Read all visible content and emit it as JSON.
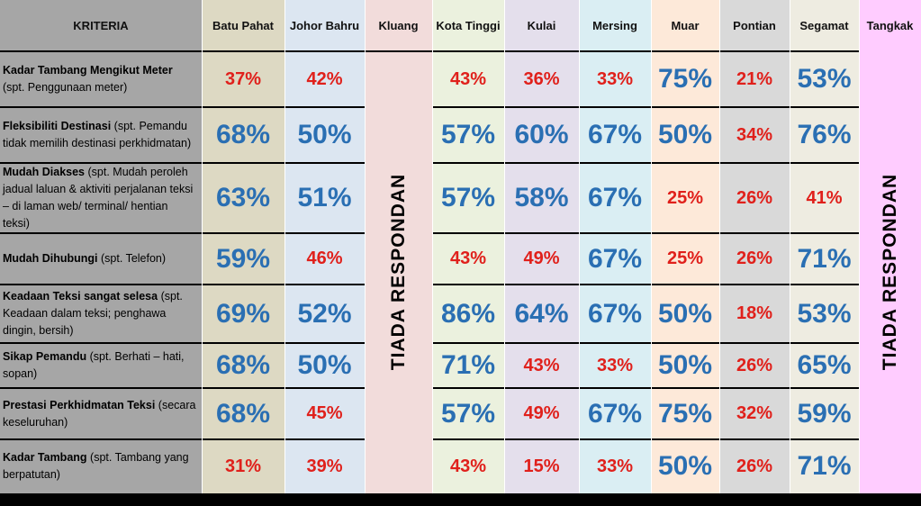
{
  "header": {
    "criteria_label": "KRITERIA",
    "columns": [
      "Batu Pahat",
      "Johor Bahru",
      "Kluang",
      "Kota Tinggi",
      "Kulai",
      "Mersing",
      "Muar",
      "Pontian",
      "Segamat",
      "Tangkak"
    ]
  },
  "no_respondent_label": "TIADA RESPONDAN",
  "colors": {
    "criteria_bg": "#a6a6a6",
    "high_value": "#2a6fb3",
    "low_value": "#e0201b",
    "batu_pahat": "#ddd9c3",
    "johor_bahru": "#dce6f1",
    "kluang": "#f2dcdb",
    "kota_tinggi": "#ebf1de",
    "kulai": "#e4dfec",
    "mersing": "#daeef3",
    "muar": "#fde9d9",
    "pontian": "#d9d9d9",
    "segamat": "#eeece1",
    "tangkak": "#ffccff"
  },
  "rows": [
    {
      "title": "Kadar Tambang Mengikut Meter",
      "note": "(spt. Penggunaan meter)",
      "values": [
        "37%",
        "42%",
        "43%",
        "36%",
        "33%",
        "75%",
        "21%",
        "53%"
      ],
      "emphasis": [
        "low",
        "low",
        "low",
        "low",
        "low",
        "high",
        "low",
        "high"
      ]
    },
    {
      "title": "Fleksibiliti Destinasi",
      "note": "(spt. Pemandu tidak memilih destinasi perkhidmatan)",
      "values": [
        "68%",
        "50%",
        "57%",
        "60%",
        "67%",
        "50%",
        "34%",
        "76%"
      ],
      "emphasis": [
        "high",
        "high",
        "high",
        "high",
        "high",
        "high",
        "low",
        "high"
      ]
    },
    {
      "title": "Mudah Diakses",
      "note": "(spt. Mudah peroleh jadual laluan & aktiviti perjalanan teksi – di laman web/ terminal/ hentian teksi)",
      "values": [
        "63%",
        "51%",
        "57%",
        "58%",
        "67%",
        "25%",
        "26%",
        "41%"
      ],
      "emphasis": [
        "high",
        "high",
        "high",
        "high",
        "high",
        "low",
        "low",
        "low"
      ]
    },
    {
      "title": "Mudah Dihubungi",
      "note": "(spt. Telefon)",
      "values": [
        "59%",
        "46%",
        "43%",
        "49%",
        "67%",
        "25%",
        "26%",
        "71%"
      ],
      "emphasis": [
        "high",
        "low",
        "low",
        "low",
        "high",
        "low",
        "low",
        "high"
      ]
    },
    {
      "title": "Keadaan Teksi sangat selesa",
      "note": "(spt. Keadaan dalam teksi; penghawa dingin, bersih)",
      "values": [
        "69%",
        "52%",
        "86%",
        "64%",
        "67%",
        "50%",
        "18%",
        "53%"
      ],
      "emphasis": [
        "high",
        "high",
        "high",
        "high",
        "high",
        "high",
        "low",
        "high"
      ]
    },
    {
      "title": "Sikap Pemandu",
      "note": "(spt. Berhati – hati, sopan)",
      "values": [
        "68%",
        "50%",
        "71%",
        "43%",
        "33%",
        "50%",
        "26%",
        "65%"
      ],
      "emphasis": [
        "high",
        "high",
        "high",
        "low",
        "low",
        "high",
        "low",
        "high"
      ]
    },
    {
      "title": "Prestasi Perkhidmatan Teksi",
      "note": "(secara keseluruhan)",
      "values": [
        "68%",
        "45%",
        "57%",
        "49%",
        "67%",
        "75%",
        "32%",
        "59%"
      ],
      "emphasis": [
        "high",
        "low",
        "high",
        "low",
        "high",
        "high",
        "low",
        "high"
      ]
    },
    {
      "title": "Kadar Tambang",
      "note": "(spt. Tambang yang berpatutan)",
      "values": [
        "31%",
        "39%",
        "43%",
        "15%",
        "33%",
        "50%",
        "26%",
        "71%"
      ],
      "emphasis": [
        "low",
        "low",
        "low",
        "low",
        "low",
        "high",
        "low",
        "high"
      ]
    }
  ]
}
